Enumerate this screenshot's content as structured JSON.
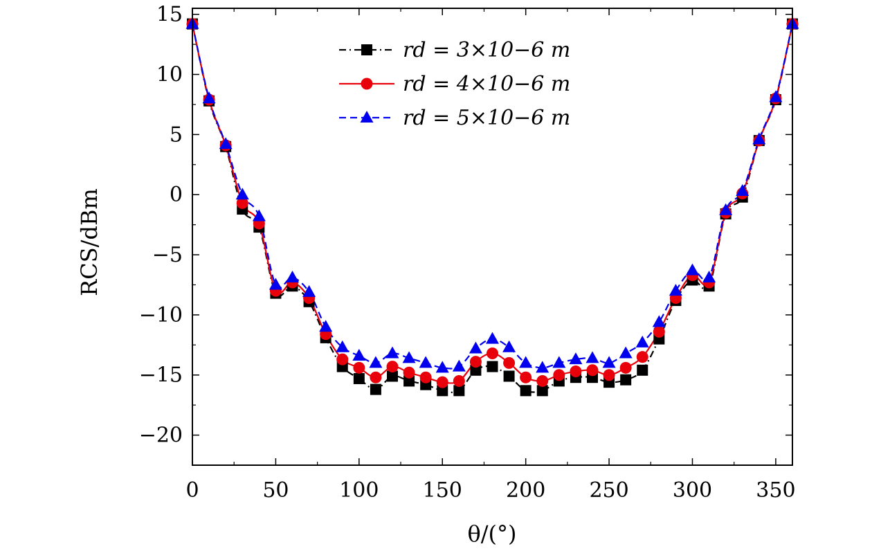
{
  "chart_data": {
    "type": "line",
    "xlabel": "θ/(°)",
    "ylabel": "RCS/dBm",
    "xlim": [
      0,
      360
    ],
    "ylim": [
      -22.5,
      15.5
    ],
    "xticks": [
      0,
      50,
      100,
      150,
      200,
      250,
      300,
      350
    ],
    "yticks": [
      15,
      10,
      5,
      0,
      -5,
      -10,
      -15,
      -20
    ],
    "xtick_labels": [
      "0",
      "50",
      "100",
      "150",
      "200",
      "250",
      "300",
      "350"
    ],
    "ytick_labels": [
      "15",
      "10",
      "5",
      "0",
      "−5",
      "−10",
      "−15",
      "−20"
    ],
    "grid": false,
    "legend_position": "top-center",
    "series": [
      {
        "name": "r_d = 3×10⁻⁶ m",
        "legend_label": "rd = 3×10−6 m",
        "color": "#000000",
        "dash": "dash-dot",
        "marker": "square",
        "x": [
          0,
          10,
          20,
          30,
          40,
          50,
          60,
          70,
          80,
          90,
          100,
          110,
          120,
          130,
          140,
          150,
          160,
          170,
          180,
          190,
          200,
          210,
          220,
          230,
          240,
          250,
          260,
          270,
          280,
          290,
          300,
          310,
          320,
          330,
          340,
          350,
          360
        ],
        "y": [
          14.2,
          7.8,
          4.0,
          -1.2,
          -2.7,
          -8.2,
          -7.6,
          -8.9,
          -11.9,
          -14.3,
          -15.3,
          -16.2,
          -15.1,
          -15.5,
          -15.8,
          -16.3,
          -16.3,
          -14.6,
          -14.3,
          -15.1,
          -16.3,
          -16.3,
          -15.5,
          -15.2,
          -15.2,
          -15.6,
          -15.4,
          -14.6,
          -12.0,
          -8.8,
          -7.1,
          -7.6,
          -1.6,
          -0.2,
          4.5,
          7.9,
          14.2
        ]
      },
      {
        "name": "r_d = 4×10⁻⁶ m",
        "legend_label": "rd = 4×10−6 m",
        "color": "#e8000b",
        "dash": "solid",
        "marker": "circle",
        "x": [
          0,
          10,
          20,
          30,
          40,
          50,
          60,
          70,
          80,
          90,
          100,
          110,
          120,
          130,
          140,
          150,
          160,
          170,
          180,
          190,
          200,
          210,
          220,
          230,
          240,
          250,
          260,
          270,
          280,
          290,
          300,
          310,
          320,
          330,
          340,
          350,
          360
        ],
        "y": [
          14.2,
          7.9,
          4.1,
          -0.7,
          -2.4,
          -8.0,
          -7.3,
          -8.6,
          -11.6,
          -13.7,
          -14.4,
          -15.2,
          -14.3,
          -14.8,
          -15.2,
          -15.6,
          -15.5,
          -13.9,
          -13.2,
          -14.0,
          -15.2,
          -15.5,
          -15.0,
          -14.7,
          -14.6,
          -15.0,
          -14.4,
          -13.5,
          -11.4,
          -8.6,
          -6.7,
          -7.3,
          -1.5,
          0.1,
          4.5,
          8.0,
          14.2
        ]
      },
      {
        "name": "r_d = 5×10⁻⁶ m",
        "legend_label": "rd = 5×10−6 m",
        "color": "#0000ee",
        "dash": "dashed",
        "marker": "triangle",
        "x": [
          0,
          10,
          20,
          30,
          40,
          50,
          60,
          70,
          80,
          90,
          100,
          110,
          120,
          130,
          140,
          150,
          160,
          170,
          180,
          190,
          200,
          210,
          220,
          230,
          240,
          250,
          260,
          270,
          280,
          290,
          300,
          310,
          320,
          330,
          340,
          350,
          360
        ],
        "y": [
          14.2,
          8.0,
          4.2,
          0.0,
          -1.8,
          -7.5,
          -6.9,
          -8.1,
          -11.0,
          -12.7,
          -13.4,
          -14.0,
          -13.2,
          -13.6,
          -14.0,
          -14.4,
          -14.3,
          -12.8,
          -12.0,
          -12.7,
          -14.0,
          -14.4,
          -14.0,
          -13.7,
          -13.6,
          -14.0,
          -13.2,
          -12.3,
          -10.6,
          -8.0,
          -6.3,
          -6.9,
          -1.3,
          0.3,
          4.6,
          8.1,
          14.2
        ]
      }
    ]
  }
}
